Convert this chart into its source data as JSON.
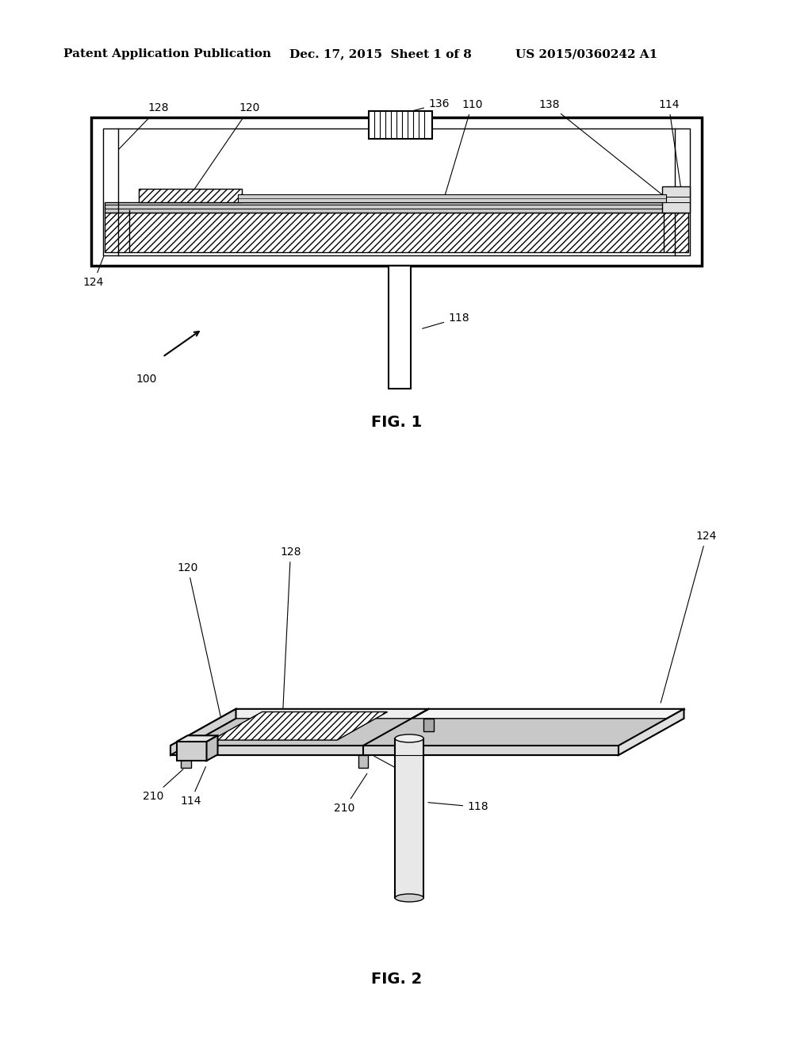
{
  "bg_color": "#ffffff",
  "header_text_left": "Patent Application Publication",
  "header_text_mid": "Dec. 17, 2015  Sheet 1 of 8",
  "header_text_right": "US 2015/0360242 A1",
  "fig1_label": "FIG. 1",
  "fig2_label": "FIG. 2",
  "line_color": "#000000",
  "font_size_header": 11,
  "font_size_label": 14,
  "font_size_ref": 10
}
